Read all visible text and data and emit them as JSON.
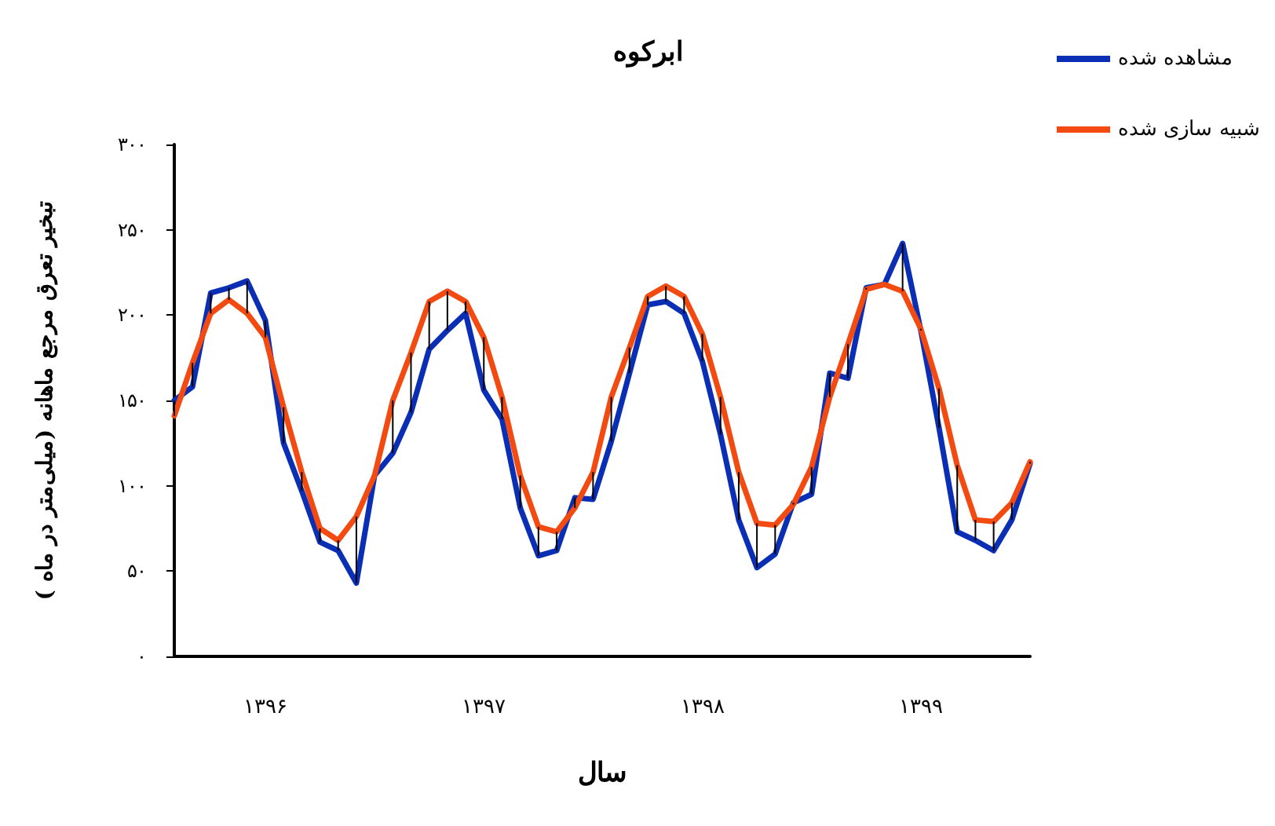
{
  "chart_data": {
    "type": "line",
    "title": "ابرکوه",
    "xlabel": "سال",
    "ylabel": "تبخیر تعرق مرجع ماهانه (میلی‌متر در ماه )",
    "categories": [
      null,
      null,
      null,
      null,
      null,
      "۱۳۹۶",
      null,
      null,
      null,
      null,
      null,
      null,
      null,
      null,
      null,
      null,
      null,
      "۱۳۹۷",
      null,
      null,
      null,
      null,
      null,
      null,
      null,
      null,
      null,
      null,
      null,
      "۱۳۹۸",
      null,
      null,
      null,
      null,
      null,
      null,
      null,
      null,
      null,
      null,
      null,
      "۱۳۹۹",
      null,
      null,
      null,
      null,
      null,
      null
    ],
    "series": [
      {
        "name": "مشاهده شده",
        "color": "#0a2fb5",
        "values": [
          150,
          158,
          213,
          216,
          220,
          197,
          125,
          97,
          67,
          62,
          43,
          106,
          119,
          143,
          180,
          191,
          201,
          156,
          139,
          87,
          59,
          62,
          93,
          92,
          126,
          166,
          206,
          208,
          201,
          173,
          130,
          80,
          52,
          60,
          90,
          95,
          166,
          163,
          216,
          218,
          242,
          191,
          134,
          73,
          68,
          62,
          80,
          113
        ],
        "errors": [
          [
            141,
            150
          ],
          [
            158,
            172
          ],
          [
            201,
            213
          ],
          [
            209,
            216
          ],
          [
            201,
            220
          ],
          [
            187,
            197
          ],
          [
            125,
            146
          ],
          [
            97,
            108
          ],
          [
            67,
            75
          ],
          [
            62,
            68
          ],
          [
            43,
            82
          ],
          [
            106,
            106
          ],
          [
            119,
            150
          ],
          [
            143,
            178
          ],
          [
            180,
            208
          ],
          [
            191,
            214
          ],
          [
            201,
            208
          ],
          [
            156,
            187
          ],
          [
            139,
            152
          ],
          [
            87,
            106
          ],
          [
            59,
            76
          ],
          [
            62,
            73
          ],
          [
            87,
            93
          ],
          [
            92,
            108
          ],
          [
            126,
            152
          ],
          [
            166,
            181
          ],
          [
            206,
            211
          ],
          [
            208,
            217
          ],
          [
            201,
            211
          ],
          [
            173,
            189
          ],
          [
            130,
            152
          ],
          [
            80,
            108
          ],
          [
            52,
            78
          ],
          [
            60,
            77
          ],
          [
            89,
            90
          ],
          [
            95,
            111
          ],
          [
            152,
            166
          ],
          [
            163,
            183
          ],
          [
            215,
            216
          ],
          [
            218,
            218
          ],
          [
            214,
            242
          ],
          [
            191,
            192
          ],
          [
            134,
            157
          ],
          [
            73,
            112
          ],
          [
            68,
            80
          ],
          [
            62,
            79
          ],
          [
            80,
            90
          ],
          [
            113,
            114
          ]
        ]
      },
      {
        "name": "شبیه سازی شده",
        "color": "#f24a10",
        "values": [
          141,
          172,
          201,
          209,
          201,
          187,
          146,
          108,
          75,
          68,
          82,
          106,
          150,
          178,
          208,
          214,
          208,
          187,
          152,
          106,
          76,
          73,
          87,
          108,
          152,
          181,
          211,
          217,
          211,
          189,
          152,
          108,
          78,
          77,
          89,
          111,
          152,
          183,
          215,
          218,
          214,
          192,
          157,
          112,
          80,
          79,
          90,
          114
        ]
      }
    ],
    "ylim": [
      0,
      300
    ],
    "yticks": [
      {
        "value": 0,
        "label": "۰"
      },
      {
        "value": 50,
        "label": "۵۰"
      },
      {
        "value": 100,
        "label": "۱۰۰"
      },
      {
        "value": 150,
        "label": "۱۵۰"
      },
      {
        "value": 200,
        "label": "۲۰۰"
      },
      {
        "value": 250,
        "label": "۲۵۰"
      },
      {
        "value": 300,
        "label": "۳۰۰"
      }
    ],
    "grid": false,
    "legend": "top right"
  }
}
